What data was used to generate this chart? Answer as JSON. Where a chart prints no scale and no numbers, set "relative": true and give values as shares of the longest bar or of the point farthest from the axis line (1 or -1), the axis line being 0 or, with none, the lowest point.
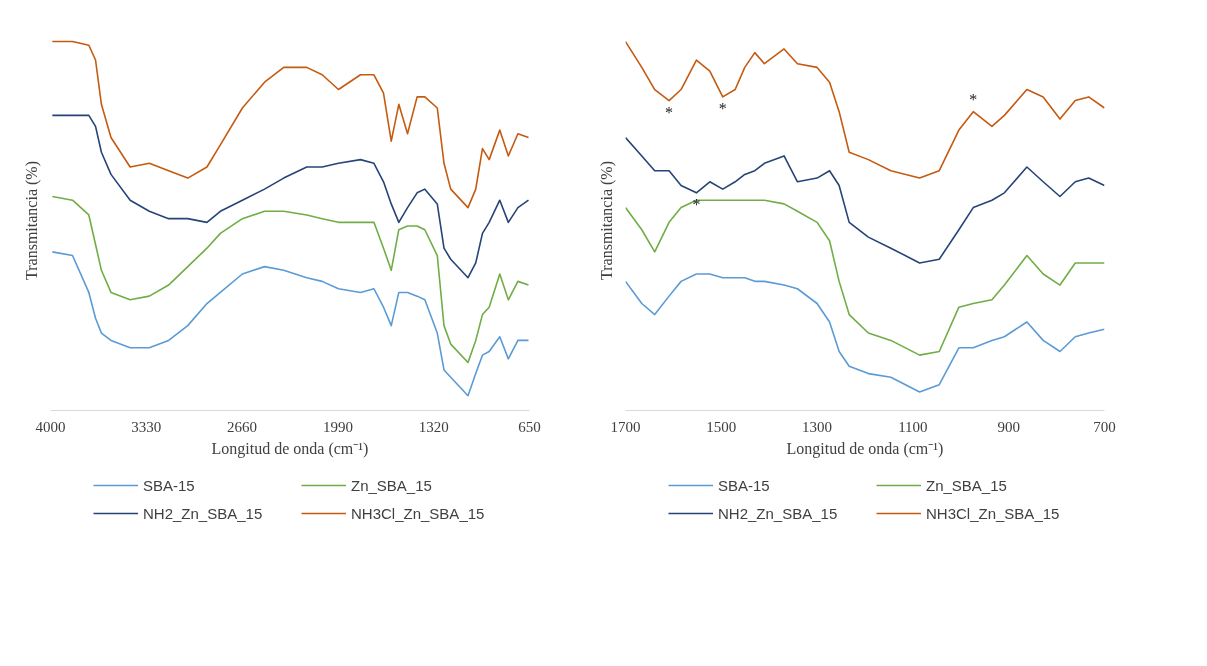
{
  "chart_data": [
    {
      "type": "line",
      "relative": true,
      "xlabel": "Longitud de onda (cm⁻¹)",
      "ylabel": "Transmitancia (%)",
      "xlim": [
        4000,
        650
      ],
      "xticks": [
        4000,
        3330,
        2660,
        1990,
        1320,
        650
      ],
      "legend": "bottom",
      "grid": false,
      "x": [
        3987,
        3846,
        3732,
        3685,
        3644,
        3577,
        3443,
        3309,
        3174,
        3040,
        2906,
        2812,
        2658,
        2503,
        2369,
        2208,
        2100,
        1986,
        1832,
        1738,
        1671,
        1617,
        1564,
        1503,
        1436,
        1382,
        1295,
        1248,
        1201,
        1080,
        1026,
        979,
        932,
        858,
        798,
        731,
        657
      ],
      "series": [
        {
          "name": "SBA-15",
          "color": "#5b9bd5",
          "values": [
            0.43,
            0.42,
            0.32,
            0.25,
            0.21,
            0.19,
            0.17,
            0.17,
            0.19,
            0.23,
            0.29,
            0.32,
            0.37,
            0.39,
            0.38,
            0.36,
            0.35,
            0.33,
            0.32,
            0.33,
            0.28,
            0.23,
            0.32,
            0.32,
            0.31,
            0.3,
            0.21,
            0.11,
            0.09,
            0.04,
            0.1,
            0.15,
            0.16,
            0.2,
            0.14,
            0.19,
            0.19
          ]
        },
        {
          "name": "Zn_SBA_15",
          "color": "#70ad47",
          "values": [
            0.58,
            0.57,
            0.53,
            0.45,
            0.38,
            0.32,
            0.3,
            0.31,
            0.34,
            0.39,
            0.44,
            0.48,
            0.52,
            0.54,
            0.54,
            0.53,
            0.52,
            0.51,
            0.51,
            0.51,
            0.44,
            0.38,
            0.49,
            0.5,
            0.5,
            0.49,
            0.42,
            0.23,
            0.18,
            0.13,
            0.19,
            0.26,
            0.28,
            0.37,
            0.3,
            0.35,
            0.34
          ]
        },
        {
          "name": "NH2_Zn_SBA_15",
          "color": "#264478",
          "values": [
            0.8,
            0.8,
            0.8,
            0.77,
            0.7,
            0.64,
            0.57,
            0.54,
            0.52,
            0.52,
            0.51,
            0.54,
            0.57,
            0.6,
            0.63,
            0.66,
            0.66,
            0.67,
            0.68,
            0.67,
            0.62,
            0.56,
            0.51,
            0.55,
            0.59,
            0.6,
            0.56,
            0.44,
            0.41,
            0.36,
            0.4,
            0.48,
            0.51,
            0.57,
            0.51,
            0.55,
            0.57
          ]
        },
        {
          "name": "NH3Cl_Zn_SBA_15",
          "color": "#c55a11",
          "values": [
            1.0,
            1.0,
            0.99,
            0.95,
            0.83,
            0.74,
            0.66,
            0.67,
            0.65,
            0.63,
            0.66,
            0.72,
            0.82,
            0.89,
            0.93,
            0.93,
            0.91,
            0.87,
            0.91,
            0.91,
            0.86,
            0.73,
            0.83,
            0.75,
            0.85,
            0.85,
            0.82,
            0.67,
            0.6,
            0.55,
            0.6,
            0.71,
            0.68,
            0.76,
            0.69,
            0.75,
            0.74
          ]
        }
      ]
    },
    {
      "type": "line",
      "relative": true,
      "xlabel": "Longitud de onda (cm⁻¹)",
      "ylabel": "Transmitancia (%)",
      "xlim": [
        1700,
        700
      ],
      "xticks": [
        1700,
        1500,
        1300,
        1100,
        900,
        700
      ],
      "legend": "bottom",
      "grid": false,
      "x": [
        1700,
        1666,
        1639,
        1609,
        1584,
        1552,
        1524,
        1497,
        1471,
        1451,
        1430,
        1410,
        1369,
        1341,
        1300,
        1274,
        1254,
        1233,
        1193,
        1146,
        1086,
        1045,
        1004,
        974,
        935,
        909,
        862,
        828,
        793,
        761,
        733,
        700
      ],
      "series": [
        {
          "name": "SBA-15",
          "color": "#5b9bd5",
          "values": [
            0.35,
            0.29,
            0.26,
            0.31,
            0.35,
            0.37,
            0.37,
            0.36,
            0.36,
            0.36,
            0.35,
            0.35,
            0.34,
            0.33,
            0.29,
            0.24,
            0.16,
            0.12,
            0.1,
            0.09,
            0.05,
            0.07,
            0.17,
            0.17,
            0.19,
            0.2,
            0.24,
            0.19,
            0.16,
            0.2,
            0.21,
            0.22
          ]
        },
        {
          "name": "Zn_SBA_15",
          "color": "#70ad47",
          "values": [
            0.55,
            0.49,
            0.43,
            0.51,
            0.55,
            0.57,
            0.57,
            0.57,
            0.57,
            0.57,
            0.57,
            0.57,
            0.56,
            0.54,
            0.51,
            0.46,
            0.35,
            0.26,
            0.21,
            0.19,
            0.15,
            0.16,
            0.28,
            0.29,
            0.3,
            0.34,
            0.42,
            0.37,
            0.34,
            0.4,
            0.4,
            0.4
          ]
        },
        {
          "name": "NH2_Zn_SBA_15",
          "color": "#264478",
          "values": [
            0.74,
            0.69,
            0.65,
            0.65,
            0.61,
            0.59,
            0.62,
            0.6,
            0.62,
            0.64,
            0.65,
            0.67,
            0.69,
            0.62,
            0.63,
            0.65,
            0.61,
            0.51,
            0.47,
            0.44,
            0.4,
            0.41,
            0.49,
            0.55,
            0.57,
            0.59,
            0.66,
            0.62,
            0.58,
            0.62,
            0.63,
            0.61
          ]
        },
        {
          "name": "NH3Cl_Zn_SBA_15",
          "color": "#c55a11",
          "values": [
            1.0,
            0.93,
            0.87,
            0.84,
            0.87,
            0.95,
            0.92,
            0.85,
            0.87,
            0.93,
            0.97,
            0.94,
            0.98,
            0.94,
            0.93,
            0.89,
            0.81,
            0.7,
            0.68,
            0.65,
            0.63,
            0.65,
            0.76,
            0.81,
            0.77,
            0.8,
            0.87,
            0.85,
            0.79,
            0.84,
            0.85,
            0.82
          ]
        }
      ],
      "annotations": [
        {
          "text": "*",
          "x": 1609,
          "y": 0.84
        },
        {
          "text": "*",
          "x": 1497,
          "y": 0.85
        },
        {
          "text": "*",
          "x": 974,
          "y": 0.81
        },
        {
          "text": "*",
          "x": 1552,
          "y": 0.59
        }
      ]
    }
  ]
}
